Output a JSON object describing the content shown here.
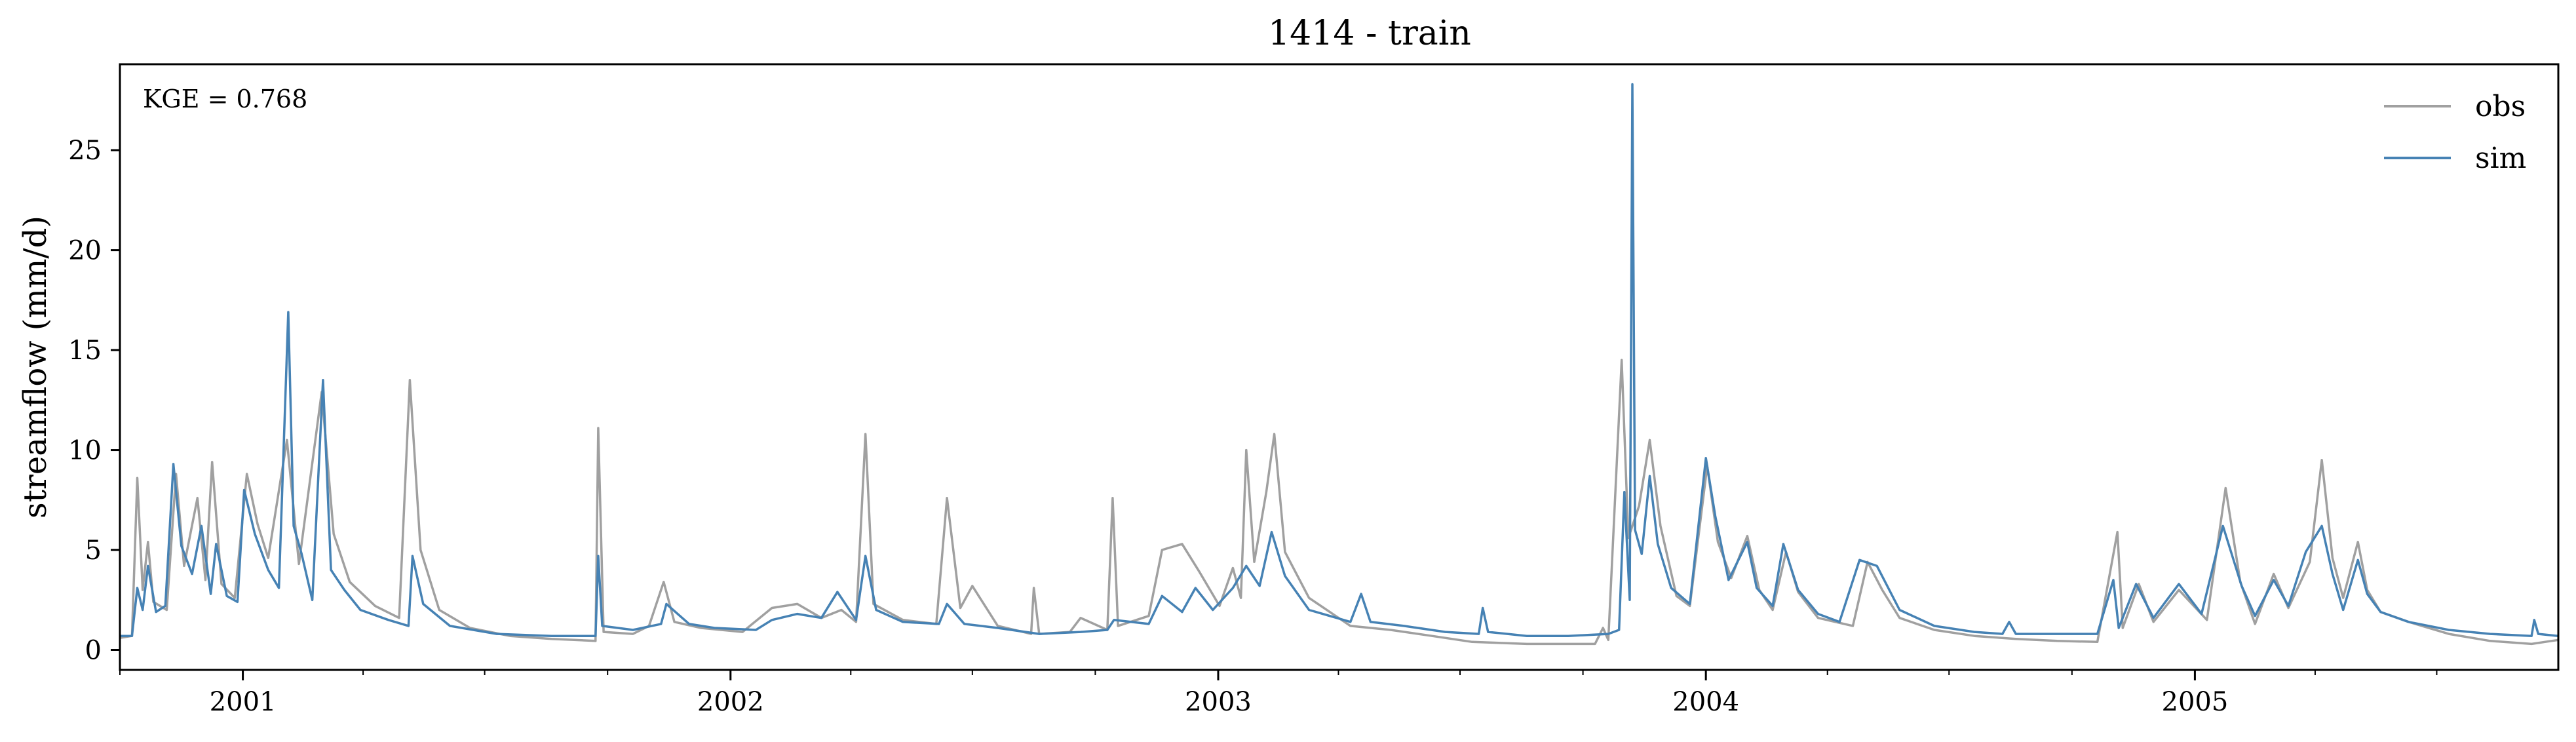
{
  "chart_data": {
    "type": "line",
    "title": "1414 - train",
    "xlabel": "",
    "ylabel": "streamflow (mm/d)",
    "annotation": "KGE = 0.768",
    "legend_position": "top-right",
    "grid": false,
    "xlim": [
      "2000-10-01",
      "2005-09-30"
    ],
    "ylim": [
      -1,
      29.3
    ],
    "yticks": [
      0,
      5,
      10,
      15,
      20,
      25
    ],
    "xticks": [
      {
        "date": "2001-01-01",
        "label": "2001"
      },
      {
        "date": "2002-01-01",
        "label": "2002"
      },
      {
        "date": "2003-01-01",
        "label": "2003"
      },
      {
        "date": "2004-01-01",
        "label": "2004"
      },
      {
        "date": "2005-01-01",
        "label": "2005"
      }
    ],
    "colors": {
      "obs": "#a0a0a0",
      "sim": "#4682b4"
    },
    "series": [
      {
        "name": "obs",
        "color": "#a0a0a0",
        "points": [
          [
            "2000-10-01",
            0.6
          ],
          [
            "2000-10-10",
            0.7
          ],
          [
            "2000-10-14",
            8.6
          ],
          [
            "2000-10-18",
            3.0
          ],
          [
            "2000-10-22",
            5.4
          ],
          [
            "2000-10-26",
            2.4
          ],
          [
            "2000-11-05",
            2.0
          ],
          [
            "2000-11-12",
            8.8
          ],
          [
            "2000-11-18",
            4.2
          ],
          [
            "2000-11-28",
            7.6
          ],
          [
            "2000-12-04",
            3.5
          ],
          [
            "2000-12-09",
            9.4
          ],
          [
            "2000-12-16",
            3.3
          ],
          [
            "2000-12-26",
            2.6
          ],
          [
            "2001-01-04",
            8.8
          ],
          [
            "2001-01-12",
            6.3
          ],
          [
            "2001-01-20",
            4.6
          ],
          [
            "2001-02-03",
            10.5
          ],
          [
            "2001-02-12",
            4.3
          ],
          [
            "2001-03-01",
            12.9
          ],
          [
            "2001-03-10",
            5.8
          ],
          [
            "2001-03-22",
            3.4
          ],
          [
            "2001-04-10",
            2.2
          ],
          [
            "2001-04-28",
            1.6
          ],
          [
            "2001-05-06",
            13.5
          ],
          [
            "2001-05-14",
            5.0
          ],
          [
            "2001-05-28",
            2.0
          ],
          [
            "2001-06-20",
            1.1
          ],
          [
            "2001-07-20",
            0.7
          ],
          [
            "2001-08-20",
            0.55
          ],
          [
            "2001-09-22",
            0.45
          ],
          [
            "2001-09-24",
            11.1
          ],
          [
            "2001-09-28",
            0.9
          ],
          [
            "2001-10-20",
            0.8
          ],
          [
            "2001-11-01",
            1.2
          ],
          [
            "2001-11-12",
            3.4
          ],
          [
            "2001-11-20",
            1.4
          ],
          [
            "2001-12-10",
            1.1
          ],
          [
            "2002-01-10",
            0.9
          ],
          [
            "2002-02-01",
            2.1
          ],
          [
            "2002-02-20",
            2.3
          ],
          [
            "2002-03-10",
            1.6
          ],
          [
            "2002-03-25",
            2.0
          ],
          [
            "2002-04-05",
            1.4
          ],
          [
            "2002-04-12",
            10.8
          ],
          [
            "2002-04-18",
            2.3
          ],
          [
            "2002-05-10",
            1.5
          ],
          [
            "2002-06-04",
            1.3
          ],
          [
            "2002-06-12",
            7.6
          ],
          [
            "2002-06-22",
            2.1
          ],
          [
            "2002-07-01",
            3.2
          ],
          [
            "2002-07-20",
            1.2
          ],
          [
            "2002-08-14",
            0.8
          ],
          [
            "2002-08-16",
            3.1
          ],
          [
            "2002-08-20",
            0.8
          ],
          [
            "2002-09-12",
            0.9
          ],
          [
            "2002-09-20",
            1.6
          ],
          [
            "2002-10-10",
            1.0
          ],
          [
            "2002-10-14",
            7.6
          ],
          [
            "2002-10-18",
            1.2
          ],
          [
            "2002-11-10",
            1.7
          ],
          [
            "2002-11-20",
            5.0
          ],
          [
            "2002-12-05",
            5.3
          ],
          [
            "2002-12-18",
            3.9
          ],
          [
            "2003-01-02",
            2.2
          ],
          [
            "2003-01-12",
            4.1
          ],
          [
            "2003-01-18",
            2.6
          ],
          [
            "2003-01-22",
            10.0
          ],
          [
            "2003-01-28",
            4.4
          ],
          [
            "2003-02-06",
            7.9
          ],
          [
            "2003-02-12",
            10.8
          ],
          [
            "2003-02-20",
            4.9
          ],
          [
            "2003-03-10",
            2.6
          ],
          [
            "2003-04-10",
            1.2
          ],
          [
            "2003-05-10",
            1.0
          ],
          [
            "2003-06-10",
            0.7
          ],
          [
            "2003-07-10",
            0.4
          ],
          [
            "2003-08-20",
            0.3
          ],
          [
            "2003-09-20",
            0.3
          ],
          [
            "2003-10-10",
            0.3
          ],
          [
            "2003-10-16",
            1.1
          ],
          [
            "2003-10-20",
            0.5
          ],
          [
            "2003-10-30",
            14.5
          ],
          [
            "2003-11-04",
            5.6
          ],
          [
            "2003-11-12",
            7.2
          ],
          [
            "2003-11-20",
            10.5
          ],
          [
            "2003-11-28",
            6.2
          ],
          [
            "2003-12-10",
            2.7
          ],
          [
            "2003-12-20",
            2.2
          ],
          [
            "2004-01-02",
            9.2
          ],
          [
            "2004-01-10",
            5.4
          ],
          [
            "2004-01-20",
            3.6
          ],
          [
            "2004-02-01",
            5.7
          ],
          [
            "2004-02-10",
            3.0
          ],
          [
            "2004-02-20",
            2.0
          ],
          [
            "2004-03-01",
            4.9
          ],
          [
            "2004-03-10",
            2.9
          ],
          [
            "2004-03-25",
            1.6
          ],
          [
            "2004-04-20",
            1.2
          ],
          [
            "2004-05-01",
            4.4
          ],
          [
            "2004-05-12",
            3.0
          ],
          [
            "2004-05-25",
            1.6
          ],
          [
            "2004-06-20",
            1.0
          ],
          [
            "2004-07-20",
            0.7
          ],
          [
            "2004-08-20",
            0.55
          ],
          [
            "2004-09-20",
            0.45
          ],
          [
            "2004-10-20",
            0.4
          ],
          [
            "2004-11-04",
            5.9
          ],
          [
            "2004-11-08",
            1.1
          ],
          [
            "2004-11-20",
            3.3
          ],
          [
            "2004-12-01",
            1.4
          ],
          [
            "2004-12-20",
            3.0
          ],
          [
            "2005-01-10",
            1.5
          ],
          [
            "2005-01-24",
            8.1
          ],
          [
            "2005-02-04",
            3.4
          ],
          [
            "2005-02-15",
            1.3
          ],
          [
            "2005-03-01",
            3.8
          ],
          [
            "2005-03-12",
            2.1
          ],
          [
            "2005-03-28",
            4.4
          ],
          [
            "2005-04-06",
            9.5
          ],
          [
            "2005-04-14",
            4.6
          ],
          [
            "2005-04-22",
            2.6
          ],
          [
            "2005-05-03",
            5.4
          ],
          [
            "2005-05-10",
            3.0
          ],
          [
            "2005-05-20",
            1.9
          ],
          [
            "2005-06-10",
            1.4
          ],
          [
            "2005-07-10",
            0.8
          ],
          [
            "2005-08-10",
            0.45
          ],
          [
            "2005-09-10",
            0.3
          ],
          [
            "2005-09-20",
            0.4
          ],
          [
            "2005-09-30",
            0.5
          ]
        ]
      },
      {
        "name": "sim",
        "color": "#4682b4",
        "points": [
          [
            "2000-10-01",
            0.7
          ],
          [
            "2000-10-10",
            0.7
          ],
          [
            "2000-10-14",
            3.1
          ],
          [
            "2000-10-18",
            2.0
          ],
          [
            "2000-10-22",
            4.2
          ],
          [
            "2000-10-28",
            1.9
          ],
          [
            "2000-11-04",
            2.2
          ],
          [
            "2000-11-10",
            9.3
          ],
          [
            "2000-11-16",
            5.2
          ],
          [
            "2000-11-24",
            3.8
          ],
          [
            "2000-12-01",
            6.2
          ],
          [
            "2000-12-08",
            2.8
          ],
          [
            "2000-12-12",
            5.3
          ],
          [
            "2000-12-20",
            2.7
          ],
          [
            "2000-12-28",
            2.4
          ],
          [
            "2001-01-02",
            8.0
          ],
          [
            "2001-01-10",
            5.8
          ],
          [
            "2001-01-20",
            4.0
          ],
          [
            "2001-01-28",
            3.1
          ],
          [
            "2001-02-04",
            16.9
          ],
          [
            "2001-02-08",
            6.2
          ],
          [
            "2001-02-14",
            4.8
          ],
          [
            "2001-02-22",
            2.5
          ],
          [
            "2001-03-02",
            13.5
          ],
          [
            "2001-03-08",
            4.0
          ],
          [
            "2001-03-18",
            3.0
          ],
          [
            "2001-03-30",
            2.0
          ],
          [
            "2001-04-20",
            1.5
          ],
          [
            "2001-05-05",
            1.2
          ],
          [
            "2001-05-08",
            4.7
          ],
          [
            "2001-05-16",
            2.3
          ],
          [
            "2001-06-05",
            1.2
          ],
          [
            "2001-07-10",
            0.8
          ],
          [
            "2001-08-20",
            0.7
          ],
          [
            "2001-09-22",
            0.7
          ],
          [
            "2001-09-24",
            4.7
          ],
          [
            "2001-09-27",
            1.2
          ],
          [
            "2001-10-20",
            1.0
          ],
          [
            "2001-11-10",
            1.3
          ],
          [
            "2001-11-14",
            2.3
          ],
          [
            "2001-12-01",
            1.3
          ],
          [
            "2001-12-20",
            1.1
          ],
          [
            "2002-01-20",
            1.0
          ],
          [
            "2002-02-01",
            1.5
          ],
          [
            "2002-02-20",
            1.8
          ],
          [
            "2002-03-10",
            1.6
          ],
          [
            "2002-03-22",
            2.9
          ],
          [
            "2002-04-05",
            1.5
          ],
          [
            "2002-04-12",
            4.7
          ],
          [
            "2002-04-20",
            2.0
          ],
          [
            "2002-05-10",
            1.4
          ],
          [
            "2002-06-06",
            1.3
          ],
          [
            "2002-06-12",
            2.3
          ],
          [
            "2002-06-25",
            1.3
          ],
          [
            "2002-07-20",
            1.1
          ],
          [
            "2002-08-20",
            0.8
          ],
          [
            "2002-09-20",
            0.9
          ],
          [
            "2002-10-10",
            1.0
          ],
          [
            "2002-10-15",
            1.5
          ],
          [
            "2002-11-10",
            1.3
          ],
          [
            "2002-11-20",
            2.7
          ],
          [
            "2002-12-05",
            1.9
          ],
          [
            "2002-12-15",
            3.1
          ],
          [
            "2002-12-28",
            2.0
          ],
          [
            "2003-01-12",
            3.1
          ],
          [
            "2003-01-22",
            4.2
          ],
          [
            "2003-02-01",
            3.2
          ],
          [
            "2003-02-10",
            5.9
          ],
          [
            "2003-02-20",
            3.7
          ],
          [
            "2003-03-10",
            2.0
          ],
          [
            "2003-04-10",
            1.4
          ],
          [
            "2003-04-18",
            2.8
          ],
          [
            "2003-04-25",
            1.4
          ],
          [
            "2003-05-20",
            1.2
          ],
          [
            "2003-06-20",
            0.9
          ],
          [
            "2003-07-15",
            0.8
          ],
          [
            "2003-07-18",
            2.1
          ],
          [
            "2003-07-22",
            0.9
          ],
          [
            "2003-08-20",
            0.7
          ],
          [
            "2003-09-20",
            0.7
          ],
          [
            "2003-10-20",
            0.8
          ],
          [
            "2003-10-28",
            1.0
          ],
          [
            "2003-11-01",
            7.9
          ],
          [
            "2003-11-05",
            2.5
          ],
          [
            "2003-11-07",
            28.3
          ],
          [
            "2003-11-09",
            6.0
          ],
          [
            "2003-11-14",
            4.8
          ],
          [
            "2003-11-20",
            8.7
          ],
          [
            "2003-11-26",
            5.3
          ],
          [
            "2003-12-06",
            3.1
          ],
          [
            "2003-12-20",
            2.3
          ],
          [
            "2004-01-01",
            9.6
          ],
          [
            "2004-01-08",
            6.7
          ],
          [
            "2004-01-18",
            3.5
          ],
          [
            "2004-02-01",
            5.4
          ],
          [
            "2004-02-08",
            3.1
          ],
          [
            "2004-02-20",
            2.2
          ],
          [
            "2004-02-28",
            5.3
          ],
          [
            "2004-03-10",
            3.0
          ],
          [
            "2004-03-25",
            1.8
          ],
          [
            "2004-04-10",
            1.4
          ],
          [
            "2004-04-25",
            4.5
          ],
          [
            "2004-05-08",
            4.2
          ],
          [
            "2004-05-25",
            2.0
          ],
          [
            "2004-06-20",
            1.2
          ],
          [
            "2004-07-20",
            0.9
          ],
          [
            "2004-08-10",
            0.8
          ],
          [
            "2004-08-15",
            1.4
          ],
          [
            "2004-08-20",
            0.8
          ],
          [
            "2004-09-20",
            0.8
          ],
          [
            "2004-10-20",
            0.8
          ],
          [
            "2004-11-01",
            3.5
          ],
          [
            "2004-11-05",
            1.1
          ],
          [
            "2004-11-18",
            3.3
          ],
          [
            "2004-12-01",
            1.6
          ],
          [
            "2004-12-20",
            3.3
          ],
          [
            "2005-01-06",
            1.8
          ],
          [
            "2005-01-22",
            6.2
          ],
          [
            "2005-02-05",
            3.2
          ],
          [
            "2005-02-15",
            1.7
          ],
          [
            "2005-03-01",
            3.5
          ],
          [
            "2005-03-12",
            2.2
          ],
          [
            "2005-03-25",
            4.9
          ],
          [
            "2005-04-06",
            6.2
          ],
          [
            "2005-04-14",
            3.8
          ],
          [
            "2005-04-22",
            2.0
          ],
          [
            "2005-05-03",
            4.5
          ],
          [
            "2005-05-10",
            2.8
          ],
          [
            "2005-05-20",
            1.9
          ],
          [
            "2005-06-10",
            1.4
          ],
          [
            "2005-07-10",
            1.0
          ],
          [
            "2005-08-10",
            0.8
          ],
          [
            "2005-09-10",
            0.7
          ],
          [
            "2005-09-12",
            1.5
          ],
          [
            "2005-09-15",
            0.8
          ],
          [
            "2005-09-30",
            0.7
          ]
        ]
      }
    ]
  }
}
